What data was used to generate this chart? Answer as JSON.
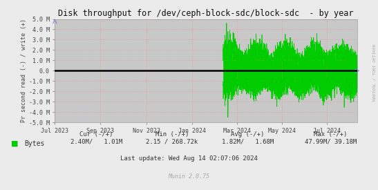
{
  "title": "Disk throughput for /dev/ceph-block-sdc/block-sdc  - by year",
  "ylabel": "Pr second read (-) / write (+)",
  "bg_color": "#ebebeb",
  "plot_bg_color": "#c8c8c8",
  "line_color": "#00cc00",
  "zero_line_color": "#000000",
  "ylim": [
    -5000000,
    5000000
  ],
  "yticks": [
    -5000000,
    -4000000,
    -3000000,
    -2000000,
    -1000000,
    0,
    1000000,
    2000000,
    3000000,
    4000000,
    5000000
  ],
  "ytick_labels": [
    "-5.0 M",
    "-4.0 M",
    "-3.0 M",
    "-2.0 M",
    "-1.0 M",
    "0.0",
    "1.0 M",
    "2.0 M",
    "3.0 M",
    "4.0 M",
    "5.0 M"
  ],
  "xstart": 1688169600,
  "xend": 1723593600,
  "xtick_positions": [
    1688169600,
    1693526400,
    1698883200,
    1704240000,
    1709510400,
    1714780800,
    1720051200
  ],
  "xtick_labels": [
    "Jul 2023",
    "Sep 2023",
    "Nov 2023",
    "Jan 2024",
    "Mar 2024",
    "May 2024",
    "Jul 2024"
  ],
  "legend_text": "Bytes",
  "legend_color": "#00cc00",
  "cur_neg": "2.40M",
  "cur_pos": "1.01M",
  "min_neg": "2.15",
  "min_pos": "268.72k",
  "avg_neg": "1.82M",
  "avg_pos": "1.68M",
  "max_neg": "47.99M",
  "max_pos": "39.18M",
  "last_update": "Last update: Wed Aug 14 02:07:06 2024",
  "munin_version": "Munin 2.0.75",
  "rrdtool_text": "RRDTOOL / TOBI OETIKER",
  "data_start_ts": 1707868800,
  "write_spike": 4600000,
  "read_spike": -4500000
}
